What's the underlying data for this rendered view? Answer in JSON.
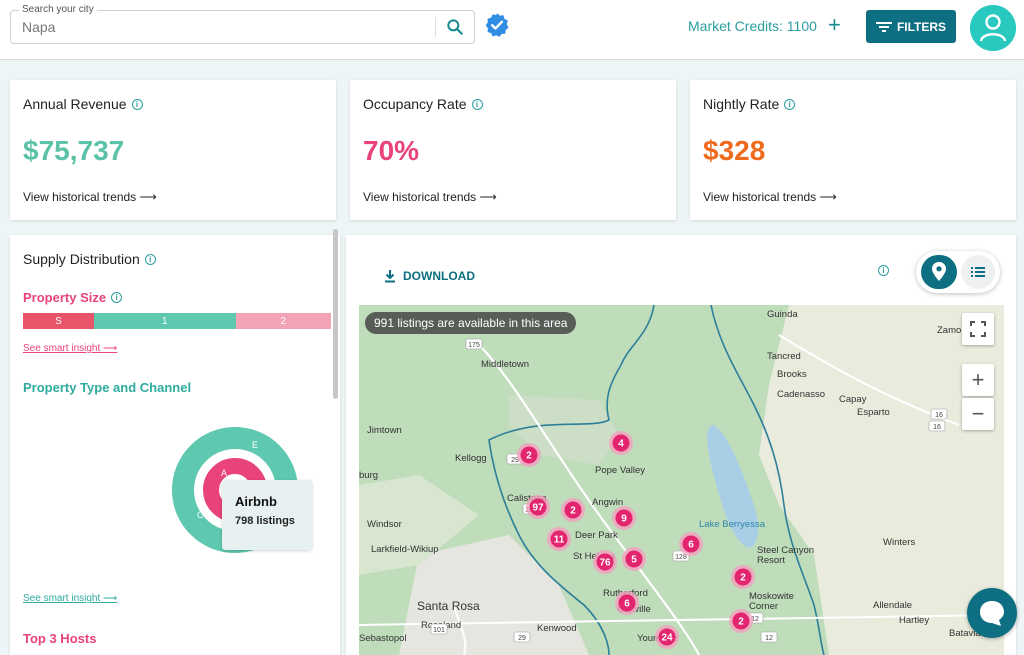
{
  "search": {
    "label": "Search your city",
    "value": "Napa"
  },
  "header": {
    "credits_label": "Market Credits: 1100",
    "filters_label": "FILTERS"
  },
  "metrics": [
    {
      "title": "Annual Revenue",
      "value": "$75,737",
      "color": "#5bc2a8",
      "link": "View historical trends"
    },
    {
      "title": "Occupancy Rate",
      "value": "70%",
      "color": "#e8437a",
      "link": "View historical trends"
    },
    {
      "title": "Nightly Rate",
      "value": "$328",
      "color": "#f06a1d",
      "link": "View historical trends"
    }
  ],
  "supply": {
    "title": "Supply Distribution",
    "property_size_title": "Property Size",
    "size_segments": [
      {
        "label": "S",
        "color": "#e8546a",
        "share": 0.23
      },
      {
        "label": "1",
        "color": "#5ec8b0",
        "share": 0.46
      },
      {
        "label": "2",
        "color": "#f4a3b6",
        "share": 0.31
      }
    ],
    "smart_insight": "See smart insight",
    "property_type_title": "Property Type and Channel",
    "donut_labels": {
      "outer_e": "E",
      "outer_c": "C",
      "inner_a": "A"
    },
    "tooltip": {
      "title": "Airbnb",
      "value": "798 listings"
    },
    "smart_insight_2": "See smart insight",
    "hosts_title": "Top 3 Hosts"
  },
  "map": {
    "download_label": "DOWNLOAD",
    "banner": "991 listings are available in this area",
    "places": [
      "Guinda",
      "Zamo",
      "Middletown",
      "Tancred",
      "Brooks",
      "Cadenasso",
      "Capay",
      "Esparto",
      "Jimtown",
      "Kellogg",
      "Pope Valley",
      "Calistoga",
      "Angwin",
      "Lake Berryessa",
      "Windsor",
      "Deer Park",
      "Steel Canyon",
      "Resort",
      "Winters",
      "Larkfield-Wikiup",
      "St Helena",
      "Rutherford",
      "Moskowite",
      "Corner",
      "Santa Rosa",
      "Allendale",
      "Roseland",
      "Kenwood",
      "Hartley",
      "Sebastopol",
      "Yountville",
      "Batavia",
      "burg",
      "Oakville"
    ],
    "road_numbers": [
      "175",
      "29",
      "128",
      "128",
      "128",
      "16",
      "16",
      "101",
      "12",
      "12",
      "29"
    ],
    "clusters": [
      "4",
      "2",
      "97",
      "2",
      "9",
      "11",
      "76",
      "5",
      "6",
      "2",
      "6",
      "24",
      "2"
    ]
  }
}
